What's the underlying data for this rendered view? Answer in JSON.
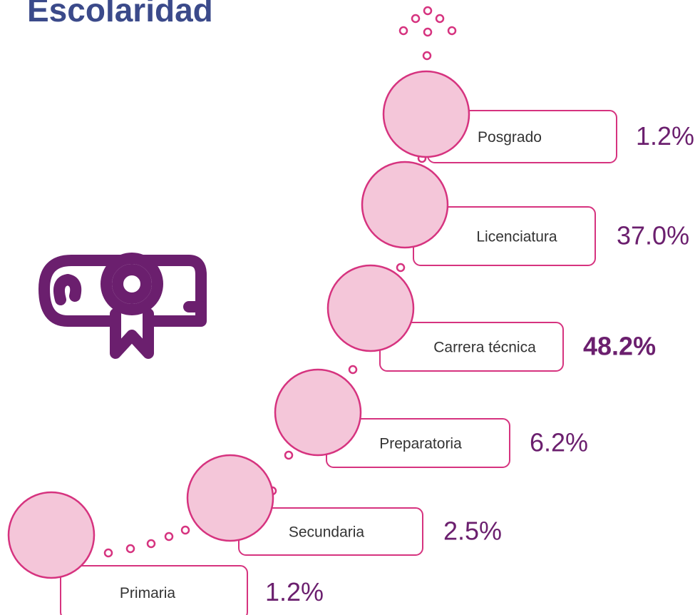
{
  "title": "Escolaridad",
  "levels": [
    {
      "label": "Posgrado",
      "value": "1.2%"
    },
    {
      "label": "Licenciatura",
      "value": "37.0%"
    },
    {
      "label": "Carrera técnica",
      "value": "48.2%",
      "bold": true
    },
    {
      "label": "Preparatoria",
      "value": "6.2%"
    },
    {
      "label": "Secundaria",
      "value": "2.5%"
    },
    {
      "label": "Primaria",
      "value": "1.2%"
    }
  ]
}
